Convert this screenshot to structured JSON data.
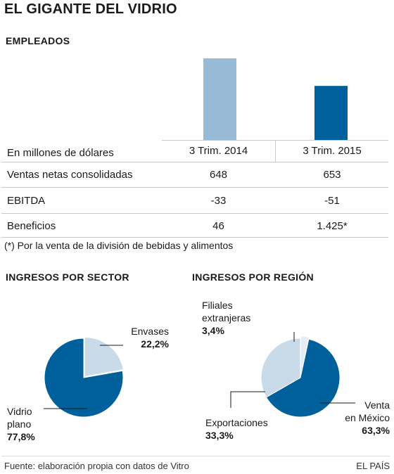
{
  "title": "EL GIGANTE DEL VIDRIO",
  "employees": {
    "heading": "EMPLEADOS",
    "bars": [
      {
        "period": "3 Trim. 2014",
        "color": "#97bad6"
      },
      {
        "period": "3 Trim. 2015",
        "color": "#00609b"
      }
    ]
  },
  "table": {
    "unit_label": "En millones de dólares",
    "columns": [
      "3 Trim. 2014",
      "3 Trim. 2015"
    ],
    "rows": [
      {
        "label": "Ventas netas consolidadas",
        "values": [
          "648",
          "653"
        ]
      },
      {
        "label": "EBITDA",
        "values": [
          "-33",
          "-51"
        ]
      },
      {
        "label": "Beneficios",
        "values": [
          "46",
          "1.425*"
        ]
      }
    ],
    "footnote": "(*) Por la venta de la división de bebidas y alimentos"
  },
  "chart_data": [
    {
      "type": "bar",
      "title": "EMPLEADOS",
      "categories": [
        "3 Trim. 2014",
        "3 Trim. 2015"
      ],
      "values": [
        24000,
        15900
      ]
    },
    {
      "type": "pie",
      "title": "INGRESOS POR SECTOR",
      "slices": [
        {
          "label": "Envases",
          "value": 22.2,
          "display": "22,2%",
          "color": "#c9dbe9"
        },
        {
          "label": "Vidrio plano",
          "label_lines": [
            "Vidrio",
            "plano"
          ],
          "value": 77.8,
          "display": "77,8%",
          "color": "#00609b"
        }
      ]
    },
    {
      "type": "pie",
      "title": "INGRESOS POR REGIÓN",
      "slices": [
        {
          "label": "Filiales extranjeras",
          "label_lines": [
            "Filiales",
            "extranjeras"
          ],
          "value": 3.4,
          "display": "3,4%",
          "color": "#e4edf5"
        },
        {
          "label": "Venta en México",
          "label_lines": [
            "Venta",
            "en México"
          ],
          "value": 63.3,
          "display": "63,3%",
          "color": "#00609b"
        },
        {
          "label": "Exportaciones",
          "label_lines": [
            "Exportaciones"
          ],
          "value": 33.3,
          "display": "33,3%",
          "color": "#c9dbe9"
        }
      ]
    }
  ],
  "footer": {
    "source": "Fuente: elaboración propia con datos de Vitro",
    "brand": "EL PAÍS"
  }
}
